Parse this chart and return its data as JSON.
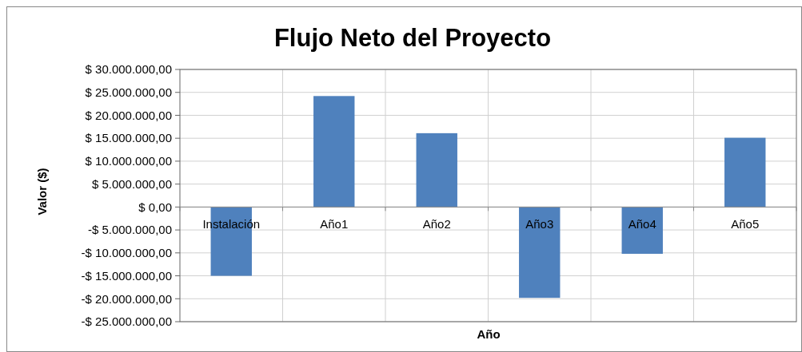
{
  "chart_data": {
    "type": "bar",
    "title": "Flujo Neto del Proyecto",
    "xlabel": "Año",
    "ylabel": "Valor ($)",
    "categories": [
      "Instalación",
      "Año1",
      "Año2",
      "Año3",
      "Año4",
      "Año5"
    ],
    "values": [
      -15000000,
      24200000,
      16100000,
      -19800000,
      -10200000,
      15100000
    ],
    "color": "#4f81bd",
    "ylim": [
      -25000000,
      30000000
    ],
    "yticks": [
      {
        "value": 30000000,
        "label": "$ 30.000.000,00"
      },
      {
        "value": 25000000,
        "label": "$ 25.000.000,00"
      },
      {
        "value": 20000000,
        "label": "$ 20.000.000,00"
      },
      {
        "value": 15000000,
        "label": "$ 15.000.000,00"
      },
      {
        "value": 10000000,
        "label": "$ 10.000.000,00"
      },
      {
        "value": 5000000,
        "label": "$ 5.000.000,00"
      },
      {
        "value": 0,
        "label": "$ 0,00"
      },
      {
        "value": -5000000,
        "label": "-$ 5.000.000,00"
      },
      {
        "value": -10000000,
        "label": "-$ 10.000.000,00"
      },
      {
        "value": -15000000,
        "label": "-$ 15.000.000,00"
      },
      {
        "value": -20000000,
        "label": "-$ 20.000.000,00"
      },
      {
        "value": -25000000,
        "label": "-$ 25.000.000,00"
      }
    ],
    "grid": true
  }
}
